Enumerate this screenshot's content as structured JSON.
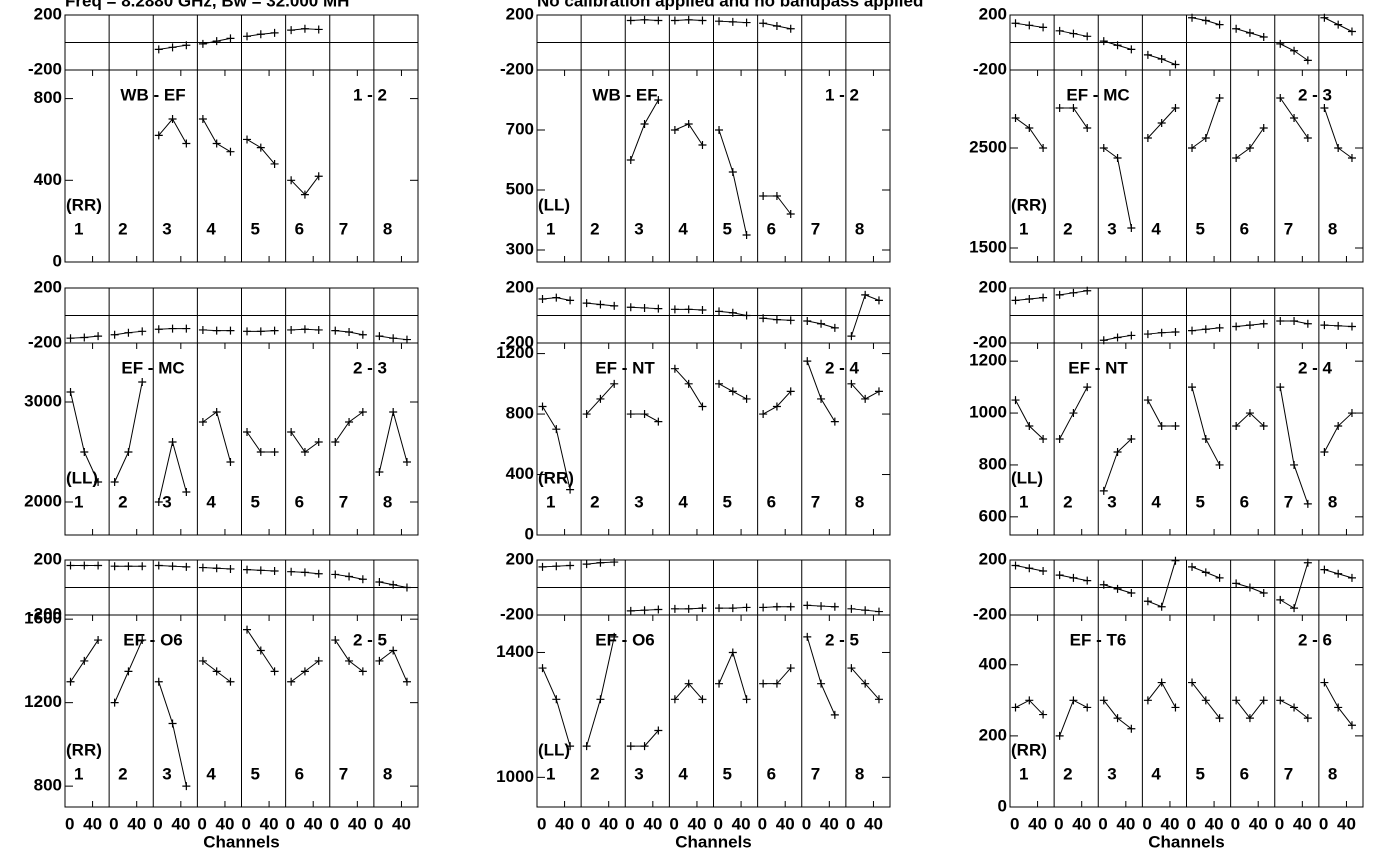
{
  "header": {
    "title": "Freq = 8.2880 GHz, Bw = 32.000 MH",
    "subtitle": "No calibration applied and no bandpass applied"
  },
  "channels": {
    "xlim": [
      0,
      512
    ],
    "xticks": [
      0,
      40,
      {
        "value": 64,
        "label": "0"
      },
      {
        "value": 104,
        "label": "40"
      },
      {
        "value": 128,
        "label": "0"
      },
      {
        "value": 168,
        "label": "40"
      },
      {
        "value": 192,
        "label": "0"
      },
      {
        "value": 232,
        "label": "40"
      },
      {
        "value": 256,
        "label": "0"
      },
      {
        "value": 296,
        "label": "40"
      },
      {
        "value": 320,
        "label": "0"
      },
      {
        "value": 360,
        "label": "40"
      },
      {
        "value": 384,
        "label": "0"
      },
      {
        "value": 424,
        "label": "40"
      },
      {
        "value": 448,
        "label": "0"
      },
      {
        "value": 488,
        "label": "40"
      }
    ],
    "x": [
      8,
      28,
      48,
      72,
      92,
      112,
      136,
      156,
      176,
      200,
      220,
      240,
      264,
      284,
      304,
      328,
      348,
      368,
      392,
      412,
      432,
      456,
      476,
      496
    ]
  },
  "chart_data": [
    {
      "type": "line",
      "label": "WB - EF",
      "baseline": "1 - 2",
      "polarization": "(RR)",
      "if_labels": [
        "1",
        "2",
        "3",
        "4",
        "5",
        "6",
        "7",
        "8"
      ],
      "phase": {
        "color": "#000000",
        "ylim": [
          -200,
          200
        ],
        "yticks": [
          -200,
          200
        ],
        "zero_line": true,
        "values": [
          null,
          null,
          null,
          null,
          null,
          null,
          -50,
          -35,
          -20,
          -10,
          10,
          30,
          45,
          60,
          70,
          90,
          100,
          95,
          null,
          null,
          null,
          null,
          null,
          null
        ]
      },
      "amplitude": {
        "color": "#000000",
        "ylim": [
          0,
          940
        ],
        "yticks": [
          0,
          400,
          800
        ],
        "values": [
          null,
          null,
          null,
          null,
          null,
          null,
          620,
          700,
          580,
          700,
          580,
          540,
          600,
          560,
          480,
          400,
          330,
          420,
          null,
          null,
          null,
          null,
          null,
          null
        ]
      }
    },
    {
      "type": "line",
      "label": "WB - EF",
      "baseline": "1 - 2",
      "polarization": "(LL)",
      "if_labels": [
        "1",
        "2",
        "3",
        "4",
        "5",
        "6",
        "7",
        "8"
      ],
      "phase": {
        "color": "#000000",
        "ylim": [
          -200,
          200
        ],
        "yticks": [
          -200,
          200
        ],
        "zero_line": true,
        "values": [
          null,
          null,
          null,
          null,
          null,
          null,
          160,
          165,
          160,
          160,
          165,
          160,
          155,
          150,
          145,
          140,
          120,
          100,
          null,
          null,
          null,
          null,
          null,
          null
        ]
      },
      "amplitude": {
        "color": "#000000",
        "ylim": [
          260,
          900
        ],
        "yticks": [
          300,
          500,
          700
        ],
        "values": [
          null,
          null,
          null,
          null,
          null,
          null,
          600,
          720,
          800,
          700,
          720,
          650,
          700,
          560,
          350,
          480,
          480,
          420,
          null,
          null,
          null,
          null,
          null,
          null
        ]
      }
    },
    {
      "type": "line",
      "label": "EF - MC",
      "baseline": "2 - 3",
      "polarization": "(RR)",
      "if_labels": [
        "1",
        "2",
        "3",
        "4",
        "5",
        "6",
        "7",
        "8"
      ],
      "phase": {
        "color": "#000000",
        "ylim": [
          -200,
          200
        ],
        "yticks": [
          -200,
          200
        ],
        "zero_line": true,
        "values": [
          140,
          125,
          110,
          85,
          65,
          45,
          10,
          -20,
          -50,
          -90,
          -120,
          -160,
          180,
          160,
          130,
          100,
          70,
          40,
          -10,
          -60,
          -130,
          180,
          130,
          80
        ]
      },
      "amplitude": {
        "color": "#000000",
        "ylim": [
          1360,
          3280
        ],
        "yticks": [
          1500,
          2500
        ],
        "values": [
          2800,
          2700,
          2500,
          2900,
          2900,
          2700,
          2500,
          2400,
          1700,
          2600,
          2750,
          2900,
          2500,
          2600,
          3000,
          2400,
          2500,
          2700,
          3000,
          2800,
          2600,
          2900,
          2500,
          2400
        ]
      }
    },
    {
      "type": "line",
      "label": "EF - MC",
      "baseline": "2 - 3",
      "polarization": "(LL)",
      "if_labels": [
        "1",
        "2",
        "3",
        "4",
        "5",
        "6",
        "7",
        "8"
      ],
      "phase": {
        "color": "#000000",
        "ylim": [
          -200,
          200
        ],
        "yticks": [
          -200,
          200
        ],
        "zero_line": true,
        "values": [
          -165,
          -160,
          -150,
          -140,
          -125,
          -115,
          -100,
          -95,
          -95,
          -105,
          -110,
          -110,
          -115,
          -115,
          -110,
          -105,
          -100,
          -105,
          -110,
          -120,
          -140,
          -150,
          -165,
          -175
        ]
      },
      "amplitude": {
        "color": "#000000",
        "ylim": [
          1670,
          3590
        ],
        "yticks": [
          2000,
          3000
        ],
        "values": [
          3100,
          2500,
          2200,
          2200,
          2500,
          3200,
          2000,
          2600,
          2100,
          2800,
          2900,
          2400,
          2700,
          2500,
          2500,
          2700,
          2500,
          2600,
          2600,
          2800,
          2900,
          2300,
          2900,
          2400
        ]
      }
    },
    {
      "type": "line",
      "label": "EF - NT",
      "baseline": "2 - 4",
      "polarization": "(RR)",
      "if_labels": [
        "1",
        "2",
        "3",
        "4",
        "5",
        "6",
        "7",
        "8"
      ],
      "phase": {
        "color": "#000000",
        "ylim": [
          -200,
          200
        ],
        "yticks": [
          -200,
          200
        ],
        "zero_line": true,
        "values": [
          120,
          130,
          110,
          90,
          80,
          70,
          60,
          55,
          50,
          45,
          45,
          40,
          30,
          20,
          0,
          -20,
          -30,
          -35,
          -40,
          -60,
          -90,
          -150,
          150,
          110
        ]
      },
      "amplitude": {
        "color": "#000000",
        "ylim": [
          0,
          1270
        ],
        "yticks": [
          0,
          400,
          800,
          1200
        ],
        "values": [
          850,
          700,
          300,
          800,
          900,
          1000,
          800,
          800,
          750,
          1100,
          1000,
          850,
          1000,
          950,
          900,
          800,
          850,
          950,
          1150,
          900,
          750,
          1000,
          900,
          950
        ]
      }
    },
    {
      "type": "line",
      "label": "EF - NT",
      "baseline": "2 - 4",
      "polarization": "(LL)",
      "if_labels": [
        "1",
        "2",
        "3",
        "4",
        "5",
        "6",
        "7",
        "8"
      ],
      "phase": {
        "color": "#000000",
        "ylim": [
          -200,
          200
        ],
        "yticks": [
          -200,
          200
        ],
        "zero_line": true,
        "values": [
          110,
          120,
          130,
          150,
          165,
          180,
          -180,
          -160,
          -145,
          -135,
          -125,
          -120,
          -110,
          -100,
          -90,
          -80,
          -70,
          -60,
          -40,
          -40,
          -60,
          -70,
          -75,
          -80
        ]
      },
      "amplitude": {
        "color": "#000000",
        "ylim": [
          530,
          1270
        ],
        "yticks": [
          600,
          800,
          1000,
          1200
        ],
        "values": [
          1050,
          950,
          900,
          900,
          1000,
          1100,
          700,
          850,
          900,
          1050,
          950,
          950,
          1100,
          900,
          800,
          950,
          1000,
          950,
          1100,
          800,
          650,
          850,
          950,
          1000
        ]
      }
    },
    {
      "type": "line",
      "label": "EF - O6",
      "baseline": "2 - 5",
      "polarization": "(RR)",
      "if_labels": [
        "1",
        "2",
        "3",
        "4",
        "5",
        "6",
        "7",
        "8"
      ],
      "xlabel": "Channels",
      "phase": {
        "color": "#000000",
        "ylim": [
          -200,
          200
        ],
        "yticks": [
          -200,
          200
        ],
        "zero_line": true,
        "values": [
          160,
          160,
          160,
          155,
          155,
          155,
          160,
          155,
          150,
          145,
          140,
          135,
          130,
          125,
          120,
          115,
          110,
          100,
          95,
          80,
          60,
          40,
          20,
          0
        ]
      },
      "amplitude": {
        "color": "#000000",
        "ylim": [
          700,
          1620
        ],
        "yticks": [
          800,
          1200,
          1600
        ],
        "values": [
          1300,
          1400,
          1500,
          1200,
          1350,
          1500,
          1300,
          1100,
          800,
          1400,
          1350,
          1300,
          1550,
          1450,
          1350,
          1300,
          1350,
          1400,
          1500,
          1400,
          1350,
          1400,
          1450,
          1300
        ]
      }
    },
    {
      "type": "line",
      "label": "EF - O6",
      "baseline": "2 - 5",
      "polarization": "(LL)",
      "if_labels": [
        "1",
        "2",
        "3",
        "4",
        "5",
        "6",
        "7",
        "8"
      ],
      "xlabel": "Channels",
      "phase": {
        "color": "#000000",
        "ylim": [
          -200,
          200
        ],
        "yticks": [
          -200,
          200
        ],
        "zero_line": true,
        "values": [
          150,
          155,
          160,
          170,
          180,
          185,
          -170,
          -165,
          -160,
          -155,
          -155,
          -150,
          -150,
          -150,
          -145,
          -145,
          -140,
          -140,
          -130,
          -135,
          -140,
          -155,
          -165,
          -175
        ]
      },
      "amplitude": {
        "color": "#000000",
        "ylim": [
          905,
          1520
        ],
        "yticks": [
          1000,
          1400
        ],
        "values": [
          1350,
          1250,
          1100,
          1100,
          1250,
          1450,
          1100,
          1100,
          1150,
          1250,
          1300,
          1250,
          1300,
          1400,
          1250,
          1300,
          1300,
          1350,
          1450,
          1300,
          1200,
          1350,
          1300,
          1250
        ]
      }
    },
    {
      "type": "line",
      "label": "EF - T6",
      "baseline": "2 - 6",
      "polarization": "(RR)",
      "if_labels": [
        "1",
        "2",
        "3",
        "4",
        "5",
        "6",
        "7",
        "8"
      ],
      "xlabel": "Channels",
      "phase": {
        "color": "#000000",
        "ylim": [
          -200,
          200
        ],
        "yticks": [
          -200,
          200
        ],
        "zero_line": true,
        "values": [
          160,
          140,
          120,
          90,
          70,
          50,
          20,
          -10,
          -40,
          -100,
          -140,
          195,
          150,
          110,
          70,
          30,
          0,
          -40,
          -90,
          -150,
          180,
          130,
          100,
          70
        ]
      },
      "amplitude": {
        "color": "#000000",
        "ylim": [
          0,
          540
        ],
        "yticks": [
          0,
          200,
          400
        ],
        "values": [
          280,
          300,
          260,
          200,
          300,
          280,
          300,
          250,
          220,
          300,
          350,
          280,
          350,
          300,
          250,
          300,
          250,
          300,
          300,
          280,
          250,
          350,
          280,
          230
        ]
      }
    }
  ]
}
